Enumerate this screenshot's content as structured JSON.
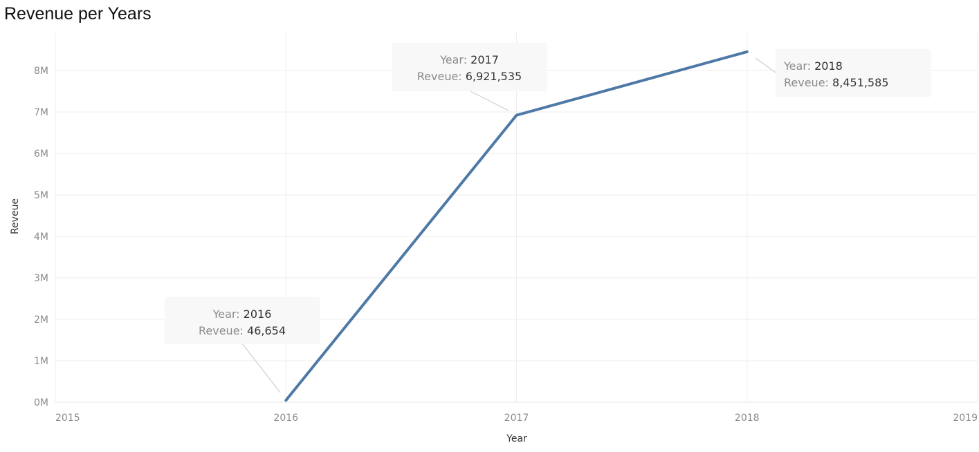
{
  "chart_data": {
    "type": "line",
    "title": "Revenue per Years",
    "xlabel": "Year",
    "ylabel": "Reveue",
    "x_ticks": [
      "2015",
      "2016",
      "2017",
      "2018",
      "2019"
    ],
    "xlim": [
      2015,
      2019
    ],
    "y_ticks": [
      "0M",
      "1M",
      "2M",
      "3M",
      "4M",
      "5M",
      "6M",
      "7M",
      "8M"
    ],
    "ylim": [
      0,
      8900000
    ],
    "grid": true,
    "line_color": "#4e79a7",
    "series": [
      {
        "x": [
          2016,
          2017,
          2018
        ],
        "values": [
          46654,
          6921535,
          8451585
        ]
      }
    ],
    "annotations": [
      {
        "year": "2016",
        "value": "46,654"
      },
      {
        "year": "2017",
        "value": "6,921,535"
      },
      {
        "year": "2018",
        "value": "8,451,585"
      }
    ],
    "annotation_year_label": "Year:",
    "annotation_value_label": "Reveue:"
  }
}
